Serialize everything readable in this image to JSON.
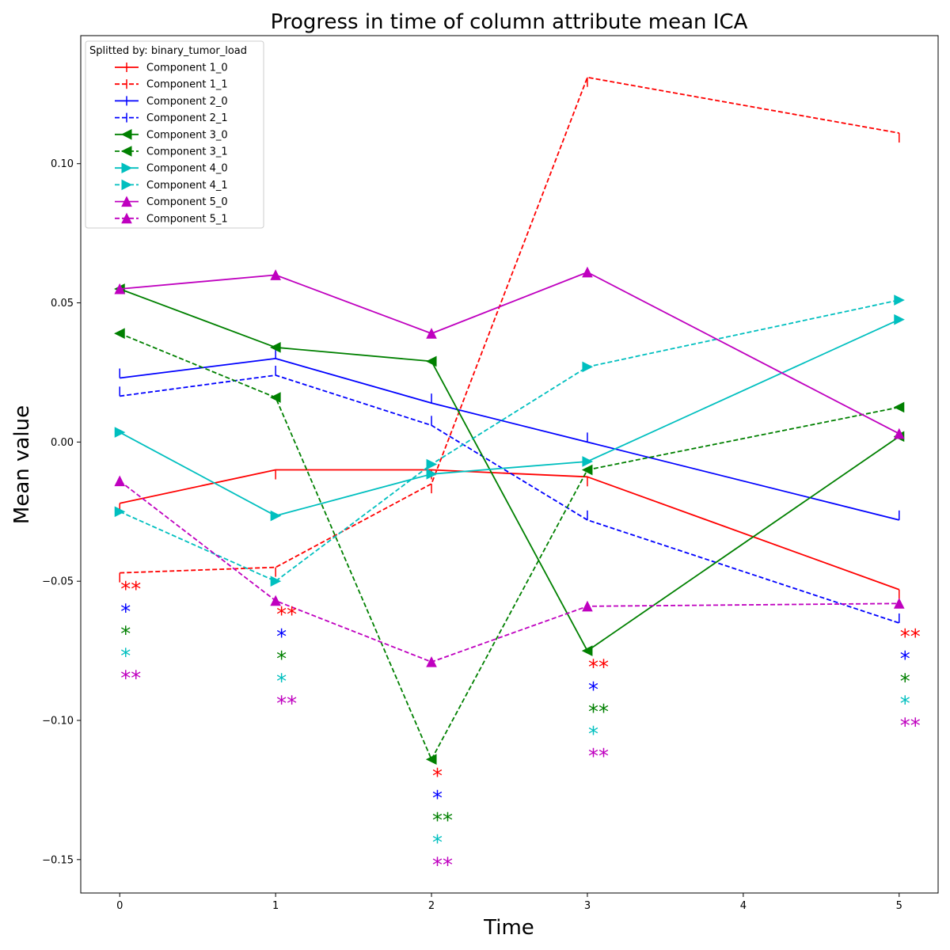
{
  "chart_data": {
    "type": "line",
    "title": "Progress in time of column attribute mean ICA",
    "xlabel": "Time",
    "ylabel": "Mean value",
    "xlim": [
      -0.25,
      5.25
    ],
    "ylim": [
      -0.162,
      0.146
    ],
    "xticks": [
      0,
      1,
      2,
      3,
      4,
      5
    ],
    "yticks": [
      -0.15,
      -0.1,
      -0.05,
      0.0,
      0.05,
      0.1
    ],
    "ytick_labels": [
      "−0.15",
      "−0.10",
      "−0.05",
      "0.00",
      "0.05",
      "0.10"
    ],
    "grid": false,
    "legend_title": "Splitted by: binary_tumor_load",
    "legend_placement": "top-left",
    "x": [
      0,
      1,
      2,
      3,
      5
    ],
    "series": [
      {
        "name": "Component 1_0",
        "color": "#ff0000",
        "dash": "solid",
        "marker": "tick-down",
        "values": [
          -0.022,
          -0.01,
          -0.01,
          -0.0125,
          -0.053
        ]
      },
      {
        "name": "Component 1_1",
        "color": "#ff0000",
        "dash": "dashed",
        "marker": "tick-down",
        "values": [
          -0.047,
          -0.045,
          -0.015,
          0.131,
          0.111
        ]
      },
      {
        "name": "Component 2_0",
        "color": "#0000ff",
        "dash": "solid",
        "marker": "tick-up",
        "values": [
          0.023,
          0.03,
          0.014,
          0.0,
          -0.028
        ]
      },
      {
        "name": "Component 2_1",
        "color": "#0000ff",
        "dash": "dashed",
        "marker": "tick-up",
        "values": [
          0.0165,
          0.024,
          0.006,
          -0.028,
          -0.065
        ]
      },
      {
        "name": "Component 3_0",
        "color": "#008000",
        "dash": "solid",
        "marker": "triangle-left",
        "values": [
          0.055,
          0.034,
          0.029,
          -0.075,
          0.002
        ]
      },
      {
        "name": "Component 3_1",
        "color": "#008000",
        "dash": "dashed",
        "marker": "triangle-left",
        "values": [
          0.039,
          0.016,
          -0.114,
          -0.01,
          0.0125
        ]
      },
      {
        "name": "Component 4_0",
        "color": "#00bfbf",
        "dash": "solid",
        "marker": "triangle-right",
        "values": [
          0.0035,
          -0.0265,
          -0.0115,
          -0.007,
          0.044
        ]
      },
      {
        "name": "Component 4_1",
        "color": "#00bfbf",
        "dash": "dashed",
        "marker": "triangle-right",
        "values": [
          -0.025,
          -0.05,
          -0.008,
          0.027,
          0.051
        ]
      },
      {
        "name": "Component 5_0",
        "color": "#bf00bf",
        "dash": "solid",
        "marker": "triangle-up",
        "values": [
          0.055,
          0.06,
          0.039,
          0.061,
          0.003
        ]
      },
      {
        "name": "Component 5_1",
        "color": "#bf00bf",
        "dash": "dashed",
        "marker": "triangle-up",
        "values": [
          -0.014,
          -0.057,
          -0.079,
          -0.059,
          -0.058
        ]
      }
    ],
    "significance_annotations": [
      {
        "x": 0,
        "marks": [
          {
            "text": "**",
            "color": "#ff0000",
            "y": -0.052
          },
          {
            "text": "*",
            "color": "#0000ff",
            "y": -0.06
          },
          {
            "text": "*",
            "color": "#008000",
            "y": -0.068
          },
          {
            "text": "*",
            "color": "#00bfbf",
            "y": -0.076
          },
          {
            "text": "**",
            "color": "#bf00bf",
            "y": -0.084
          }
        ]
      },
      {
        "x": 1,
        "marks": [
          {
            "text": "**",
            "color": "#ff0000",
            "y": -0.061
          },
          {
            "text": "*",
            "color": "#0000ff",
            "y": -0.069
          },
          {
            "text": "*",
            "color": "#008000",
            "y": -0.077
          },
          {
            "text": "*",
            "color": "#00bfbf",
            "y": -0.085
          },
          {
            "text": "**",
            "color": "#bf00bf",
            "y": -0.093
          }
        ]
      },
      {
        "x": 2,
        "marks": [
          {
            "text": "*",
            "color": "#ff0000",
            "y": -0.119
          },
          {
            "text": "*",
            "color": "#0000ff",
            "y": -0.127
          },
          {
            "text": "**",
            "color": "#008000",
            "y": -0.135
          },
          {
            "text": "*",
            "color": "#00bfbf",
            "y": -0.143
          },
          {
            "text": "**",
            "color": "#bf00bf",
            "y": -0.151
          }
        ]
      },
      {
        "x": 3,
        "marks": [
          {
            "text": "**",
            "color": "#ff0000",
            "y": -0.08
          },
          {
            "text": "*",
            "color": "#0000ff",
            "y": -0.088
          },
          {
            "text": "**",
            "color": "#008000",
            "y": -0.096
          },
          {
            "text": "*",
            "color": "#00bfbf",
            "y": -0.104
          },
          {
            "text": "**",
            "color": "#bf00bf",
            "y": -0.112
          }
        ]
      },
      {
        "x": 5,
        "marks": [
          {
            "text": "**",
            "color": "#ff0000",
            "y": -0.069
          },
          {
            "text": "*",
            "color": "#0000ff",
            "y": -0.077
          },
          {
            "text": "*",
            "color": "#008000",
            "y": -0.085
          },
          {
            "text": "*",
            "color": "#00bfbf",
            "y": -0.093
          },
          {
            "text": "**",
            "color": "#bf00bf",
            "y": -0.101
          }
        ]
      }
    ]
  }
}
